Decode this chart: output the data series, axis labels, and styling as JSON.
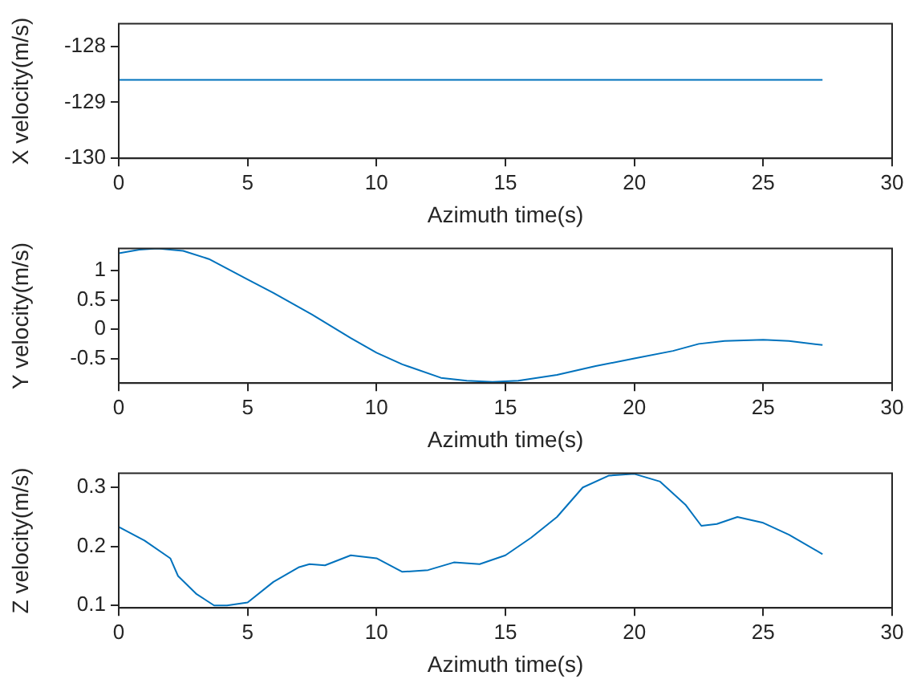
{
  "chart_data": [
    {
      "type": "line",
      "xlabel": "Azimuth time(s)",
      "ylabel": "X velocity(m/s)",
      "xlim": [
        0,
        30
      ],
      "xticks": [
        0,
        5,
        10,
        15,
        20,
        25,
        30
      ],
      "ylim": [
        -130,
        -127.6
      ],
      "yticks": [
        -130,
        -129,
        -128
      ],
      "grid": false,
      "legend": false,
      "marker": "none",
      "series": [
        {
          "color": "#0072bd",
          "x": [
            0,
            27.3
          ],
          "values": [
            -128.6,
            -128.6
          ]
        }
      ]
    },
    {
      "type": "line",
      "xlabel": "Azimuth time(s)",
      "ylabel": "Y velocity(m/s)",
      "xlim": [
        0,
        30
      ],
      "xticks": [
        0,
        5,
        10,
        15,
        20,
        25,
        30
      ],
      "ylim": [
        -0.92,
        1.38
      ],
      "yticks": [
        -0.5,
        0,
        0.5,
        1
      ],
      "grid": false,
      "legend": false,
      "marker": "none",
      "series": [
        {
          "color": "#0072bd",
          "x": [
            0,
            0.8,
            1.5,
            2.5,
            3.5,
            5,
            6,
            7.5,
            9,
            10,
            11,
            12.5,
            13.5,
            14.5,
            15.5,
            17,
            18.5,
            20,
            21.5,
            22.5,
            23.5,
            25,
            26,
            27.3
          ],
          "values": [
            1.3,
            1.36,
            1.38,
            1.34,
            1.2,
            0.85,
            0.62,
            0.25,
            -0.15,
            -0.4,
            -0.6,
            -0.83,
            -0.88,
            -0.9,
            -0.88,
            -0.78,
            -0.63,
            -0.5,
            -0.37,
            -0.25,
            -0.2,
            -0.18,
            -0.2,
            -0.27
          ]
        }
      ]
    },
    {
      "type": "line",
      "xlabel": "Azimuth time(s)",
      "ylabel": "Z velocity(m/s)",
      "xlim": [
        0,
        30
      ],
      "xticks": [
        0,
        5,
        10,
        15,
        20,
        25,
        30
      ],
      "ylim": [
        0.096,
        0.324
      ],
      "yticks": [
        0.1,
        0.2,
        0.3
      ],
      "grid": false,
      "legend": false,
      "marker": "none",
      "series": [
        {
          "color": "#0072bd",
          "x": [
            0,
            1,
            2,
            2.3,
            3,
            3.7,
            4.2,
            5,
            6,
            7,
            7.4,
            8,
            9,
            10,
            11,
            12,
            13,
            14,
            15,
            16,
            17,
            18,
            19,
            20,
            21,
            22,
            22.6,
            23.2,
            24,
            25,
            26,
            27.3
          ],
          "values": [
            0.233,
            0.21,
            0.18,
            0.15,
            0.12,
            0.1,
            0.1,
            0.105,
            0.14,
            0.165,
            0.17,
            0.168,
            0.185,
            0.18,
            0.157,
            0.16,
            0.173,
            0.17,
            0.185,
            0.215,
            0.25,
            0.3,
            0.32,
            0.323,
            0.31,
            0.27,
            0.235,
            0.238,
            0.25,
            0.24,
            0.22,
            0.187
          ]
        }
      ]
    }
  ]
}
